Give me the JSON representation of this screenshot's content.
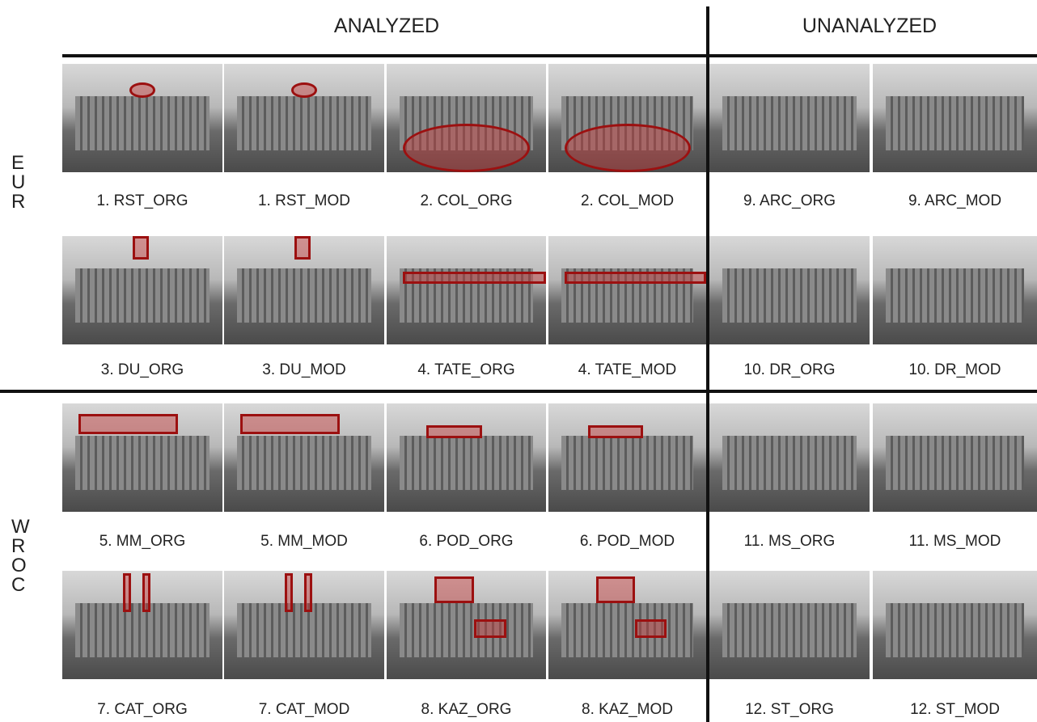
{
  "header": {
    "analyzed": "ANALYZED",
    "unanalyzed": "UNANALYZED"
  },
  "groups": [
    {
      "label": "EUR",
      "rows": [
        [
          "1. RST_ORG",
          "1. RST_MOD",
          "2. COL_ORG",
          "2. COL_MOD",
          "9. ARC_ORG",
          "9. ARC_MOD"
        ],
        [
          "3. DU_ORG",
          "3. DU_MOD",
          "4. TATE_ORG",
          "4. TATE_MOD",
          "10. DR_ORG",
          "10. DR_MOD"
        ]
      ]
    },
    {
      "label": "WROC",
      "rows": [
        [
          "5. MM_ORG",
          "5. MM_MOD",
          "6. POD_ORG",
          "6. POD_MOD",
          "11. MS_ORG",
          "11. MS_MOD"
        ],
        [
          "7. CAT_ORG",
          "7. CAT_MOD",
          "8. KAZ_ORG",
          "8. KAZ_MOD",
          "12. ST_ORG",
          "12. ST_MOD"
        ]
      ]
    }
  ]
}
